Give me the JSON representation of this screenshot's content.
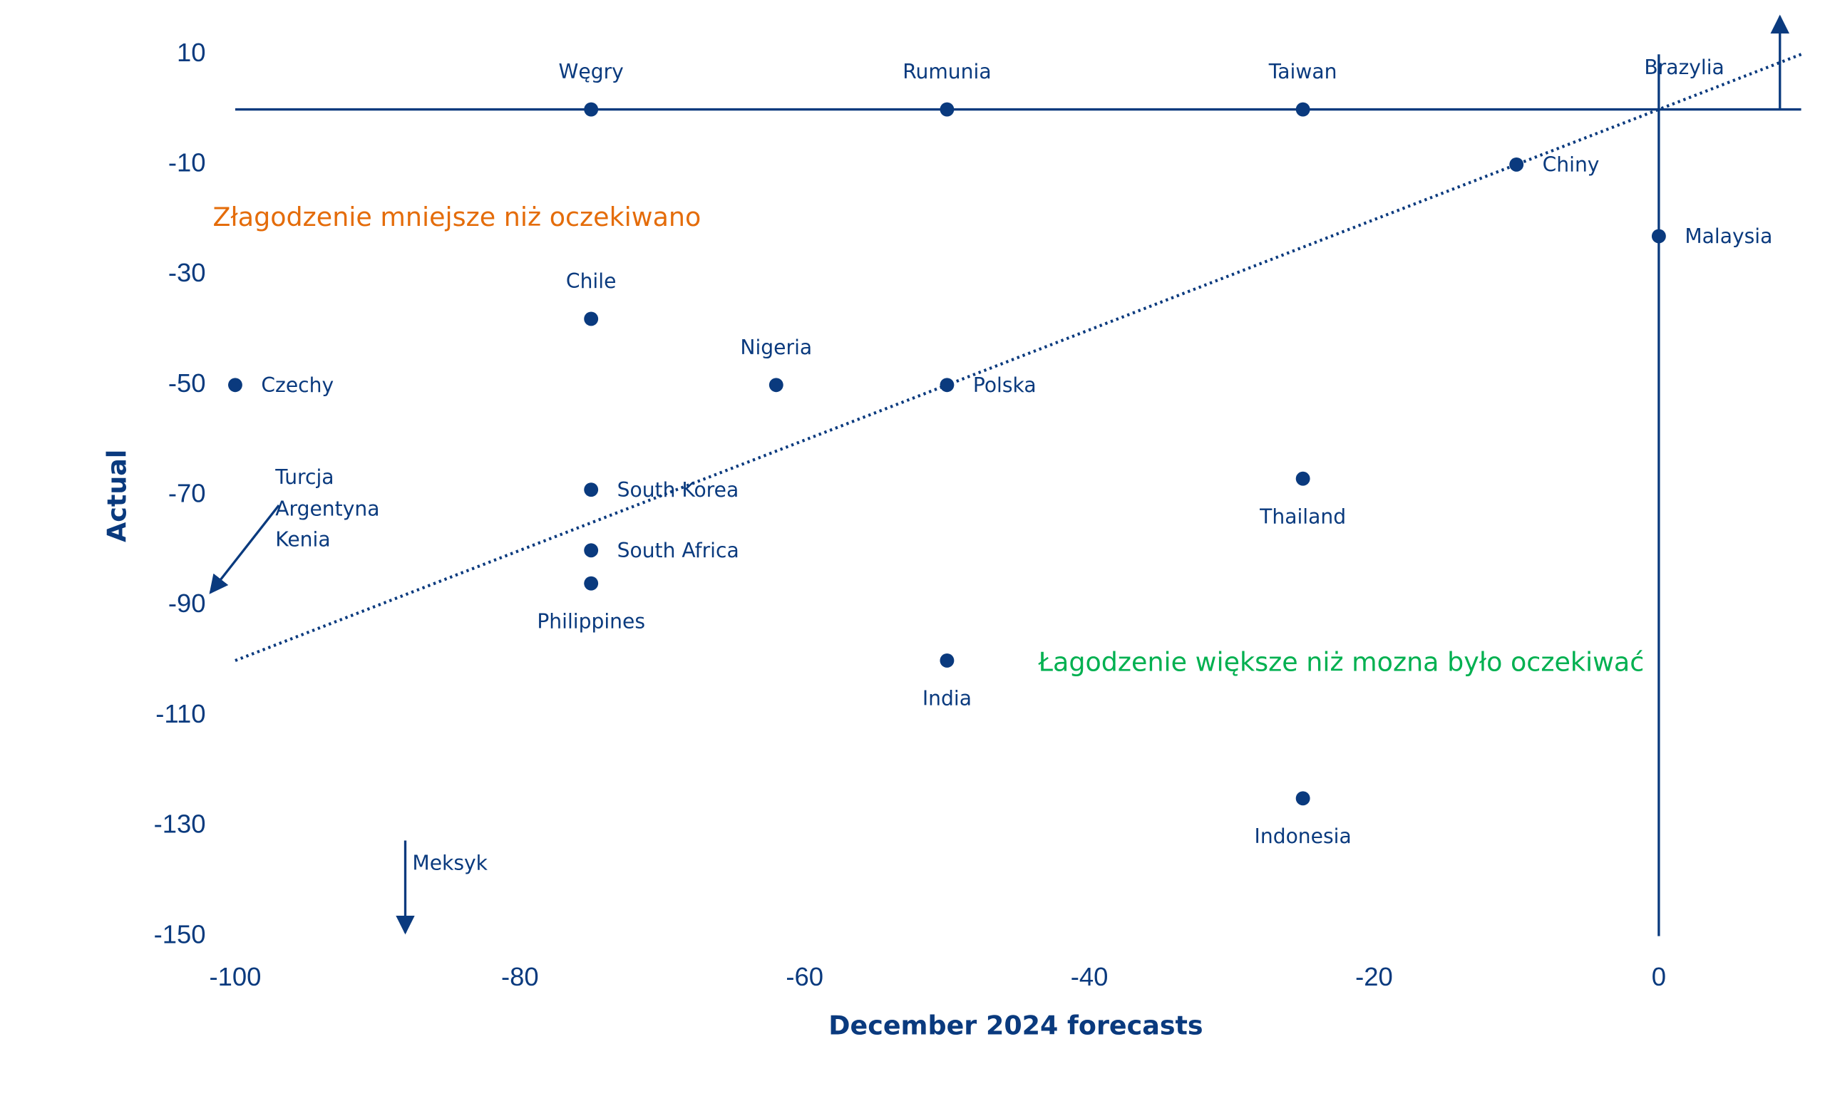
{
  "chart_data": {
    "type": "scatter",
    "x_label": "December 2024 forecasts",
    "y_label": "Actual",
    "labels": [
      "Węgry",
      "Rumunia",
      "Taiwan",
      "Chiny",
      "Malaysia",
      "Chile",
      "Nigeria",
      "Czechy",
      "Polska",
      "South Korea",
      "Thailand",
      "South Africa",
      "Philippines",
      "India",
      "Indonesia"
    ],
    "x": [
      -75,
      -50,
      -25,
      -10,
      0,
      -75,
      -62,
      -100,
      -50,
      -75,
      -25,
      -75,
      -75,
      -50,
      -25
    ],
    "y": [
      0,
      0,
      0,
      -10,
      -23,
      -38,
      -50,
      -50,
      -50,
      -69,
      -67,
      -80,
      -86,
      -100,
      -125
    ],
    "color": "#0a3a7e",
    "trendline": {
      "x": [
        -100,
        10
      ],
      "y": [
        -100,
        10
      ]
    },
    "xlim": [
      -100,
      10
    ],
    "ylim": [
      -150,
      10
    ],
    "xticks": [
      -100,
      -80,
      -60,
      -40,
      -20,
      0
    ],
    "yticks": [
      -150,
      -130,
      -110,
      -90,
      -70,
      -50,
      -30,
      -10,
      10
    ],
    "annotations": [
      "Złagodzenie mniejsze niż oczekiwano",
      "Łagodzenie większe niż mozna było oczekiwać"
    ],
    "off_chart": [
      "Brazylia",
      "Turcja",
      "Argentyna",
      "Kenia",
      "Meksyk"
    ]
  }
}
